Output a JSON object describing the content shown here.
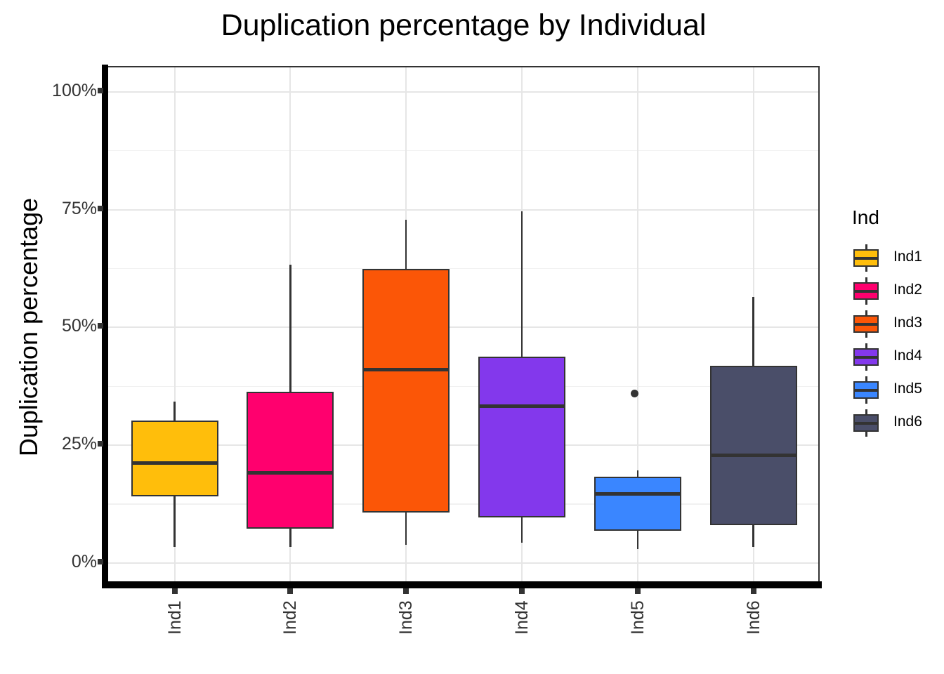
{
  "chart_data": {
    "type": "boxplot",
    "title": "Duplication percentage by Individual",
    "xlabel": "",
    "ylabel": "Duplication percentage",
    "categories": [
      "Ind1",
      "Ind2",
      "Ind3",
      "Ind4",
      "Ind5",
      "Ind6"
    ],
    "y_tick_labels": [
      "0%",
      "25%",
      "50%",
      "75%",
      "100%"
    ],
    "y_tick_values": [
      0,
      25,
      50,
      75,
      100
    ],
    "y_minor_tick_values": [
      12.5,
      37.5,
      62.5,
      87.5
    ],
    "ylim": [
      -4.2,
      105
    ],
    "grid": true,
    "legend": {
      "title": "Ind",
      "position": "right",
      "entries": [
        {
          "label": "Ind1",
          "color": "#FFBE0B"
        },
        {
          "label": "Ind2",
          "color": "#FF006E"
        },
        {
          "label": "Ind3",
          "color": "#FB5607"
        },
        {
          "label": "Ind4",
          "color": "#8338EC"
        },
        {
          "label": "Ind5",
          "color": "#3A86FF"
        },
        {
          "label": "Ind6",
          "color": "#4A4E69"
        }
      ]
    },
    "series": [
      {
        "name": "Ind1",
        "color": "#FFBE0B",
        "whisker_low": 3.1,
        "q1": 13.9,
        "median": 20.9,
        "q3": 29.9,
        "whisker_high": 34.0,
        "outliers": []
      },
      {
        "name": "Ind2",
        "color": "#FF006E",
        "whisker_low": 3.1,
        "q1": 7.0,
        "median": 18.9,
        "q3": 36.0,
        "whisker_high": 63.0,
        "outliers": []
      },
      {
        "name": "Ind3",
        "color": "#FB5607",
        "whisker_low": 3.5,
        "q1": 10.5,
        "median": 40.7,
        "q3": 62.1,
        "whisker_high": 72.5,
        "outliers": []
      },
      {
        "name": "Ind4",
        "color": "#8338EC",
        "whisker_low": 4.0,
        "q1": 9.4,
        "median": 33.0,
        "q3": 43.5,
        "whisker_high": 74.3,
        "outliers": []
      },
      {
        "name": "Ind5",
        "color": "#3A86FF",
        "whisker_low": 2.7,
        "q1": 6.5,
        "median": 14.4,
        "q3": 18.0,
        "whisker_high": 19.3,
        "outliers": [
          35.7
        ]
      },
      {
        "name": "Ind6",
        "color": "#4A4E69",
        "whisker_low": 3.2,
        "q1": 7.7,
        "median": 22.6,
        "q3": 41.5,
        "whisker_high": 56.1,
        "outliers": []
      }
    ],
    "box_border_color": "#333333",
    "outlier_color": "#333333"
  }
}
